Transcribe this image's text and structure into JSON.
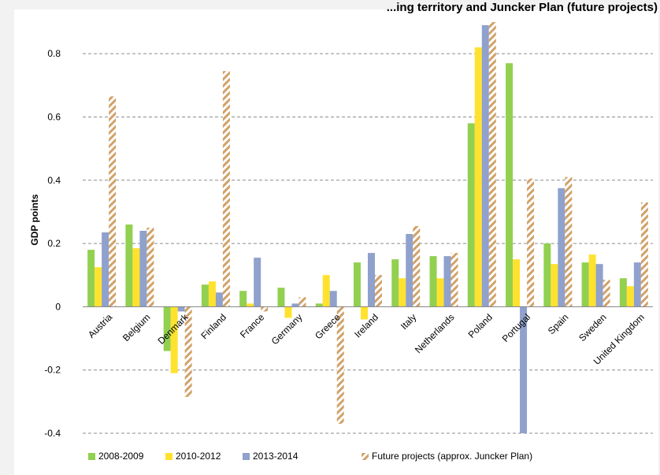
{
  "chart_data": {
    "type": "bar",
    "title": "...ing territory and Juncker Plan (future projects)",
    "xlabel": "",
    "ylabel": "GDP points",
    "ylim": [
      -0.4,
      0.9
    ],
    "yticks": [
      "-0.4",
      "-0.2",
      "0",
      "0.2",
      "0.4",
      "0.6",
      "0.8"
    ],
    "grid": true,
    "legend_position": "bottom",
    "categories": [
      "Austria",
      "Belgium",
      "Denmark",
      "Finland",
      "France",
      "Germany",
      "Greece",
      "Ireland",
      "Italy",
      "Netherlands",
      "Poland",
      "Portugal",
      "Spain",
      "Sweden",
      "United Kingdom"
    ],
    "series": [
      {
        "name": "2008-2009",
        "color": "#92d050",
        "pattern": "solid",
        "values": [
          0.18,
          0.26,
          -0.14,
          0.07,
          0.05,
          0.06,
          0.01,
          0.14,
          0.15,
          0.16,
          0.58,
          0.77,
          0.2,
          0.14,
          0.09
        ]
      },
      {
        "name": "2010-2012",
        "color": "#ffe22e",
        "pattern": "solid",
        "values": [
          0.125,
          0.185,
          -0.21,
          0.08,
          0.01,
          -0.035,
          0.1,
          -0.04,
          0.09,
          0.09,
          0.82,
          0.15,
          0.135,
          0.165,
          0.065
        ]
      },
      {
        "name": "2013-2014",
        "color": "#8fa1cc",
        "pattern": "solid",
        "values": [
          0.235,
          0.24,
          -0.015,
          0.045,
          0.155,
          0.01,
          0.05,
          0.17,
          0.23,
          0.16,
          0.89,
          -0.4,
          0.375,
          0.135,
          0.14
        ]
      },
      {
        "name": "Future projects (approx. Juncker Plan)",
        "color": "#d2a168",
        "pattern": "hatched",
        "values": [
          0.665,
          0.25,
          -0.285,
          0.745,
          -0.015,
          0.03,
          -0.37,
          0.1,
          0.255,
          0.17,
          0.9,
          0.405,
          0.41,
          0.085,
          0.33
        ]
      }
    ]
  }
}
